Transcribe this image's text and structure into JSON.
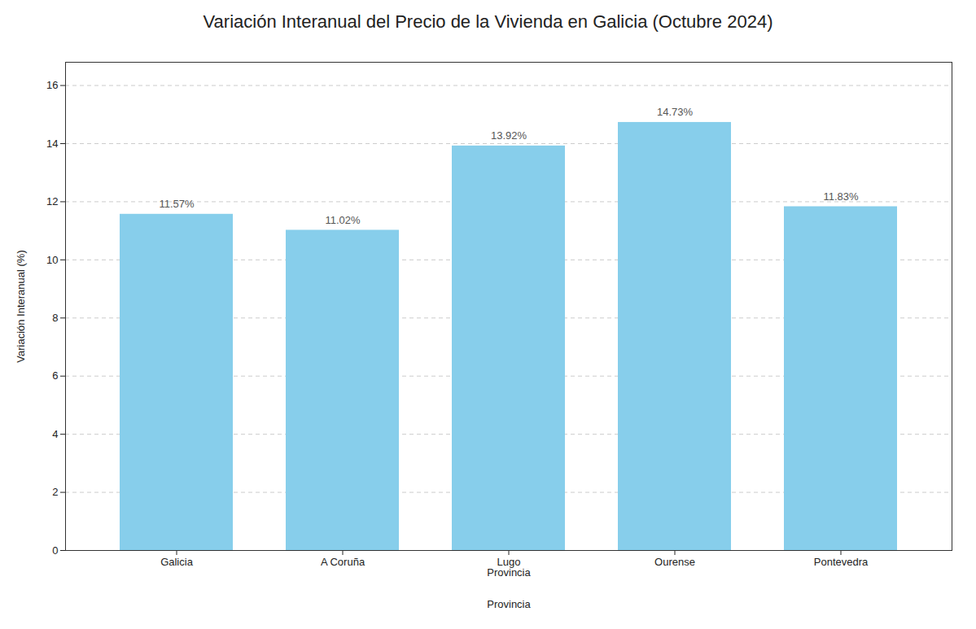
{
  "chart_data": {
    "type": "bar",
    "title": "Variación Interanual del Precio de la Vivienda en Galicia (Octubre 2024)",
    "xlabel": "Provincia",
    "ylabel": "Variación Interanual (%)",
    "categories": [
      "Galicia",
      "A Coruña",
      "Lugo\nProvincia",
      "Ourense",
      "Pontevedra"
    ],
    "values": [
      11.57,
      11.02,
      13.92,
      14.73,
      11.83
    ],
    "value_labels": [
      "11.57%",
      "11.02%",
      "13.92%",
      "14.73%",
      "11.83%"
    ],
    "data_labels": true,
    "color": "#87CEEB",
    "ylim": [
      0,
      16.8
    ],
    "yticks": [
      0,
      2,
      4,
      6,
      8,
      10,
      12,
      14,
      16
    ],
    "grid": true
  }
}
